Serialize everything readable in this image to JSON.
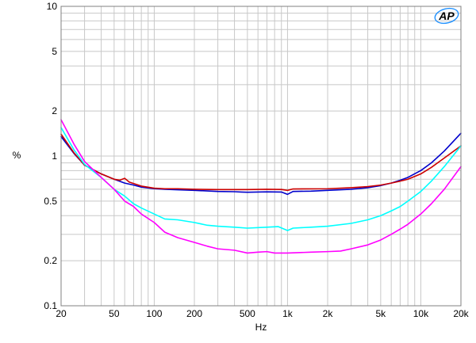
{
  "chart_data": {
    "type": "line",
    "xlabel": "Hz",
    "ylabel": "%",
    "x_scale": "log",
    "y_scale": "log",
    "xlim": [
      20,
      20000
    ],
    "ylim": [
      0.1,
      10
    ],
    "grid": true,
    "x_ticks": [
      {
        "value": 20,
        "label": "20"
      },
      {
        "value": 50,
        "label": "50"
      },
      {
        "value": 100,
        "label": "100"
      },
      {
        "value": 200,
        "label": "200"
      },
      {
        "value": 500,
        "label": "500"
      },
      {
        "value": 1000,
        "label": "1k"
      },
      {
        "value": 2000,
        "label": "2k"
      },
      {
        "value": 5000,
        "label": "5k"
      },
      {
        "value": 10000,
        "label": "10k"
      },
      {
        "value": 20000,
        "label": "20k"
      }
    ],
    "y_ticks": [
      {
        "value": 0.1,
        "label": "0.1"
      },
      {
        "value": 0.2,
        "label": "0.2"
      },
      {
        "value": 0.5,
        "label": "0.5"
      },
      {
        "value": 1,
        "label": "1"
      },
      {
        "value": 2,
        "label": "2"
      },
      {
        "value": 5,
        "label": "5"
      },
      {
        "value": 10,
        "label": "10"
      }
    ],
    "series": [
      {
        "color": "#0000cc",
        "points": [
          [
            20,
            1.35
          ],
          [
            25,
            1.04
          ],
          [
            30,
            0.87
          ],
          [
            40,
            0.76
          ],
          [
            50,
            0.7
          ],
          [
            60,
            0.66
          ],
          [
            70,
            0.64
          ],
          [
            80,
            0.62
          ],
          [
            100,
            0.605
          ],
          [
            120,
            0.6
          ],
          [
            150,
            0.595
          ],
          [
            200,
            0.59
          ],
          [
            300,
            0.58
          ],
          [
            400,
            0.578
          ],
          [
            450,
            0.575
          ],
          [
            500,
            0.573
          ],
          [
            700,
            0.577
          ],
          [
            900,
            0.575
          ],
          [
            1000,
            0.555
          ],
          [
            1100,
            0.58
          ],
          [
            1500,
            0.583
          ],
          [
            2000,
            0.59
          ],
          [
            3000,
            0.6
          ],
          [
            4000,
            0.615
          ],
          [
            5000,
            0.635
          ],
          [
            6000,
            0.66
          ],
          [
            7000,
            0.69
          ],
          [
            8000,
            0.72
          ],
          [
            10000,
            0.8
          ],
          [
            12000,
            0.9
          ],
          [
            15000,
            1.08
          ],
          [
            20000,
            1.42
          ]
        ]
      },
      {
        "color": "#cc0000",
        "points": [
          [
            20,
            1.4
          ],
          [
            25,
            1.05
          ],
          [
            30,
            0.87
          ],
          [
            40,
            0.76
          ],
          [
            50,
            0.7
          ],
          [
            55,
            0.69
          ],
          [
            60,
            0.71
          ],
          [
            65,
            0.67
          ],
          [
            80,
            0.63
          ],
          [
            100,
            0.61
          ],
          [
            120,
            0.605
          ],
          [
            150,
            0.605
          ],
          [
            200,
            0.6
          ],
          [
            300,
            0.597
          ],
          [
            500,
            0.597
          ],
          [
            700,
            0.6
          ],
          [
            900,
            0.598
          ],
          [
            1000,
            0.59
          ],
          [
            1100,
            0.603
          ],
          [
            2000,
            0.605
          ],
          [
            3000,
            0.615
          ],
          [
            4000,
            0.625
          ],
          [
            5000,
            0.64
          ],
          [
            6000,
            0.66
          ],
          [
            7000,
            0.68
          ],
          [
            8000,
            0.7
          ],
          [
            10000,
            0.76
          ],
          [
            12000,
            0.84
          ],
          [
            15000,
            0.97
          ],
          [
            20000,
            1.17
          ]
        ]
      },
      {
        "color": "#00ffff",
        "points": [
          [
            20,
            1.55
          ],
          [
            25,
            1.1
          ],
          [
            30,
            0.88
          ],
          [
            40,
            0.72
          ],
          [
            50,
            0.6
          ],
          [
            60,
            0.54
          ],
          [
            70,
            0.48
          ],
          [
            80,
            0.45
          ],
          [
            100,
            0.41
          ],
          [
            120,
            0.38
          ],
          [
            150,
            0.375
          ],
          [
            200,
            0.36
          ],
          [
            250,
            0.345
          ],
          [
            300,
            0.34
          ],
          [
            400,
            0.335
          ],
          [
            500,
            0.33
          ],
          [
            700,
            0.335
          ],
          [
            850,
            0.338
          ],
          [
            1000,
            0.318
          ],
          [
            1100,
            0.33
          ],
          [
            1500,
            0.335
          ],
          [
            2000,
            0.34
          ],
          [
            3000,
            0.355
          ],
          [
            4000,
            0.375
          ],
          [
            5000,
            0.4
          ],
          [
            6000,
            0.43
          ],
          [
            7000,
            0.46
          ],
          [
            8000,
            0.5
          ],
          [
            10000,
            0.58
          ],
          [
            12000,
            0.68
          ],
          [
            15000,
            0.85
          ],
          [
            20000,
            1.17
          ]
        ]
      },
      {
        "color": "#ff00ff",
        "points": [
          [
            20,
            1.75
          ],
          [
            25,
            1.2
          ],
          [
            30,
            0.92
          ],
          [
            40,
            0.72
          ],
          [
            50,
            0.6
          ],
          [
            60,
            0.5
          ],
          [
            70,
            0.46
          ],
          [
            80,
            0.41
          ],
          [
            100,
            0.36
          ],
          [
            120,
            0.31
          ],
          [
            150,
            0.285
          ],
          [
            200,
            0.265
          ],
          [
            250,
            0.25
          ],
          [
            300,
            0.24
          ],
          [
            400,
            0.235
          ],
          [
            500,
            0.225
          ],
          [
            600,
            0.228
          ],
          [
            700,
            0.23
          ],
          [
            800,
            0.225
          ],
          [
            1000,
            0.225
          ],
          [
            1500,
            0.228
          ],
          [
            2000,
            0.23
          ],
          [
            2500,
            0.232
          ],
          [
            3000,
            0.24
          ],
          [
            4000,
            0.255
          ],
          [
            5000,
            0.275
          ],
          [
            6000,
            0.3
          ],
          [
            7000,
            0.325
          ],
          [
            8000,
            0.35
          ],
          [
            10000,
            0.41
          ],
          [
            12000,
            0.48
          ],
          [
            15000,
            0.6
          ],
          [
            20000,
            0.85
          ]
        ]
      }
    ]
  },
  "logo": {
    "text": "AP"
  }
}
